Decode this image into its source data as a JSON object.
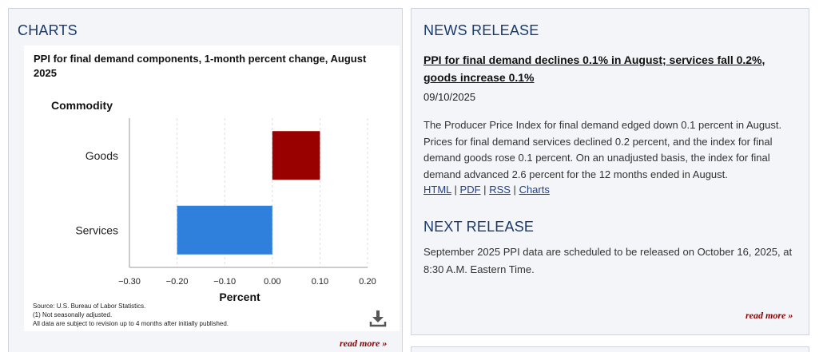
{
  "charts_panel": {
    "heading": "CHARTS",
    "read_more": "read more »"
  },
  "chart_card": {
    "source": "Source: U.S. Bureau of Labor Statistics.",
    "note": "(1) Not seasonally adjusted.",
    "revision": "All data are subject to revision up to 4 months after initially published.",
    "download_icon": "download-icon"
  },
  "chart_data": {
    "type": "bar",
    "orientation": "horizontal",
    "title": "PPI for final demand components, 1-month percent change, August 2025",
    "ylabel": "Commodity",
    "xlabel": "Percent",
    "categories": [
      "Goods",
      "Services"
    ],
    "values": [
      0.1,
      -0.2
    ],
    "colors": [
      "#990000",
      "#2f7fdc"
    ],
    "xlim": [
      -0.3,
      0.2
    ],
    "ticks": [
      -0.3,
      -0.2,
      -0.1,
      0.0,
      0.1,
      0.2
    ],
    "tick_labels": [
      "−0.30",
      "−0.20",
      "−0.10",
      "0.00",
      "0.10",
      "0.20"
    ],
    "grid": true
  },
  "news": {
    "heading": "NEWS RELEASE",
    "headline": "PPI for final demand declines 0.1% in August; services fall 0.2%, goods increase 0.1%",
    "date": "09/10/2025",
    "body": "The Producer Price Index for final demand edged down 0.1 percent in August. Prices for final demand services declined 0.2 percent, and the index for final demand goods rose 0.1 percent. On an unadjusted basis, the index for final demand advanced 2.6 percent for the 12 months ended in August.",
    "links": [
      "HTML",
      "PDF",
      "RSS",
      "Charts"
    ],
    "separator": "|",
    "next_heading": "NEXT RELEASE",
    "next_body": "September 2025 PPI data are scheduled to be released on October 16, 2025, at 8:30 A.M. Eastern Time.",
    "read_more": "read more »"
  }
}
